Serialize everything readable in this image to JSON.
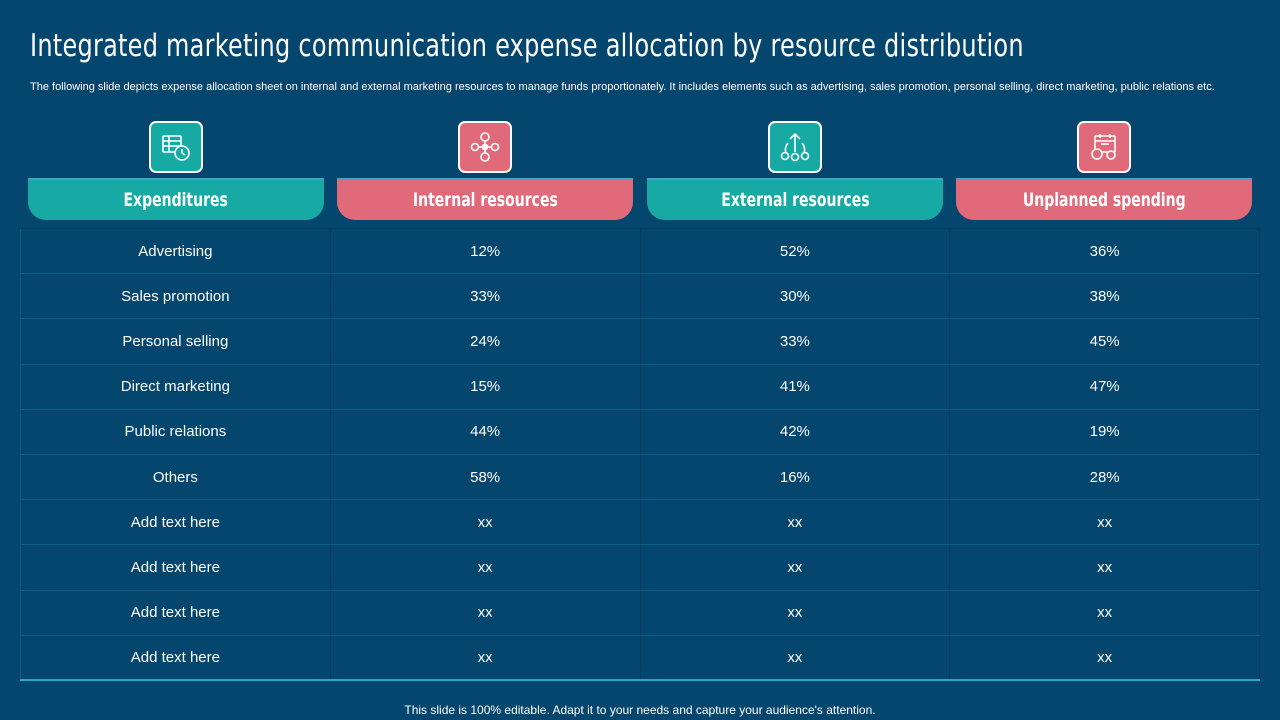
{
  "slide": {
    "title": "Integrated marketing communication expense allocation by resource distribution",
    "subtitle": "The following slide depicts expense allocation sheet on internal and external marketing resources to manage funds proportionately. It includes elements such as advertising, sales promotion, personal selling, direct marketing, public relations etc.",
    "footer": "This slide is 100% editable. Adapt it to your needs and capture your audience's attention."
  },
  "columns": [
    {
      "label": "Expenditures",
      "icon": "spreadsheet-clock-icon",
      "color": "#17aaa5"
    },
    {
      "label": "Internal resources",
      "icon": "resource-network-icon",
      "color": "#e06a7a"
    },
    {
      "label": "External resources",
      "icon": "growth-arrow-icon",
      "color": "#17aaa5"
    },
    {
      "label": "Unplanned spending",
      "icon": "calendar-money-icon",
      "color": "#e06a7a"
    }
  ],
  "rows": [
    [
      "Advertising",
      "12%",
      "52%",
      "36%"
    ],
    [
      "Sales promotion",
      "33%",
      "30%",
      "38%"
    ],
    [
      "Personal selling",
      "24%",
      "33%",
      "45%"
    ],
    [
      "Direct marketing",
      "15%",
      "41%",
      "47%"
    ],
    [
      "Public relations",
      "44%",
      "42%",
      "19%"
    ],
    [
      "Others",
      "58%",
      "16%",
      "28%"
    ],
    [
      "Add text here",
      "xx",
      "xx",
      "xx"
    ],
    [
      "Add text here",
      "xx",
      "xx",
      "xx"
    ],
    [
      "Add text here",
      "xx",
      "xx",
      "xx"
    ],
    [
      "Add text here",
      "xx",
      "xx",
      "xx"
    ]
  ]
}
